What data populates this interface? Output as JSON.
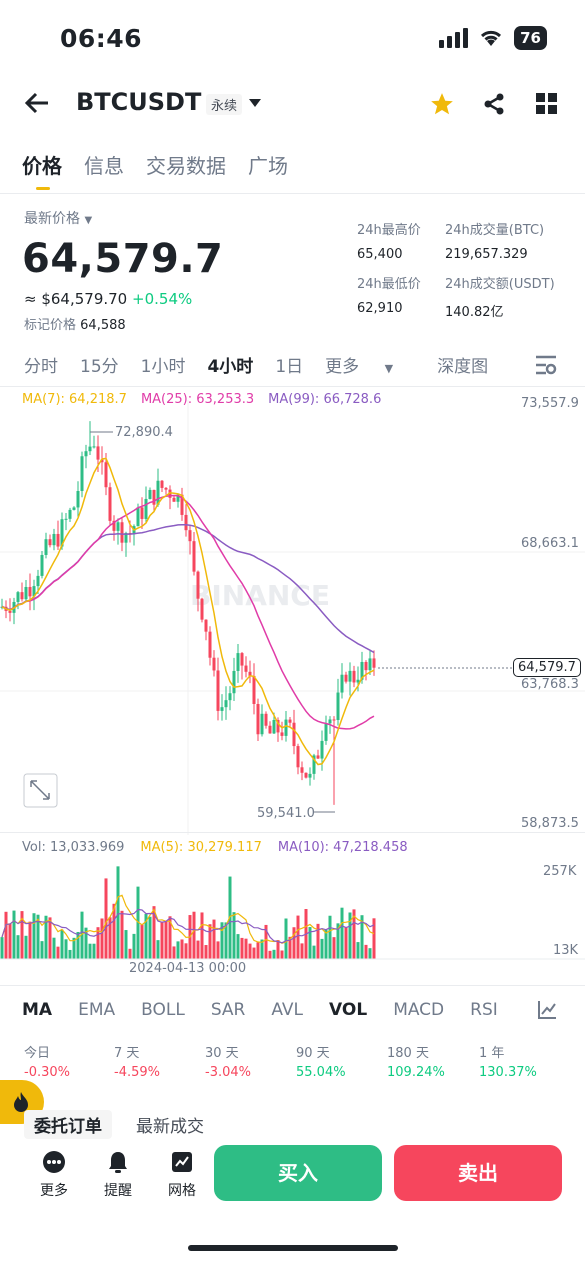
{
  "status_bar": {
    "time": "06:46",
    "battery": "76"
  },
  "header": {
    "symbol": "BTCUSDT",
    "contract_type": "永续"
  },
  "tabs": [
    "价格",
    "信息",
    "交易数据",
    "广场"
  ],
  "ticker": {
    "latest_price_label": "最新价格",
    "last_price": "64,579.7",
    "usd_price": "≈ $64,579.70",
    "change_pct": "+0.54%",
    "mark_price_label": "标记价格",
    "mark_price": "64,588",
    "high_label": "24h最高价",
    "high": "65,400",
    "low_label": "24h最低价",
    "low": "62,910",
    "vol_btc_label": "24h成交量(BTC)",
    "vol_btc": "219,657.329",
    "vol_usdt_label": "24h成交额(USDT)",
    "vol_usdt": "140.82亿"
  },
  "intervals": [
    "分时",
    "15分",
    "1小时",
    "4小时",
    "1日",
    "更多",
    "深度图"
  ],
  "active_interval": "4小时",
  "ma_legend": {
    "ma7": "MA(7): 64,218.7",
    "ma25": "MA(25): 63,253.3",
    "ma99": "MA(99): 66,728.6"
  },
  "chart_labels": {
    "y_ticks": [
      "73,557.9",
      "68,663.1",
      "63,768.3",
      "58,873.5"
    ],
    "current_price_tag": "64,579.7",
    "high_marker": "72,890.4",
    "low_marker": "59,541.0",
    "watermark": "BINANCE"
  },
  "volume": {
    "vol_label": "Vol: 13,033.969",
    "ma5_label": "MA(5): 30,279.117",
    "ma10_label": "MA(10): 47,218.458",
    "y_ticks": [
      "257K",
      "13K"
    ],
    "x_label": "2024-04-13 00:00"
  },
  "chart_data": {
    "type": "candlestick",
    "ylim": [
      58873.5,
      73557.9
    ],
    "high_marker": 72890.4,
    "low_marker": 59541.0,
    "last": 64579.7,
    "series_names": [
      "MA(7)",
      "MA(25)",
      "MA(99)"
    ],
    "colors": {
      "up": "#2ebd85",
      "down": "#f6465d",
      "ma7": "#f0b90b",
      "ma25": "#e03ca8",
      "ma99": "#8a5cc2"
    }
  },
  "indicators": [
    "MA",
    "EMA",
    "BOLL",
    "SAR",
    "AVL",
    "VOL",
    "MACD",
    "RSI"
  ],
  "performance": [
    {
      "label": "今日",
      "value": "-0.30%"
    },
    {
      "label": "7 天",
      "value": "-4.59%"
    },
    {
      "label": "30 天",
      "value": "-3.04%"
    },
    {
      "label": "90 天",
      "value": "55.04%"
    },
    {
      "label": "180 天",
      "value": "109.24%"
    },
    {
      "label": "1 年",
      "value": "130.37%"
    }
  ],
  "order_tabs": [
    "委托订单",
    "最新成交"
  ],
  "bottom": {
    "more": "更多",
    "alert": "提醒",
    "grid": "网格",
    "buy": "买入",
    "sell": "卖出"
  }
}
